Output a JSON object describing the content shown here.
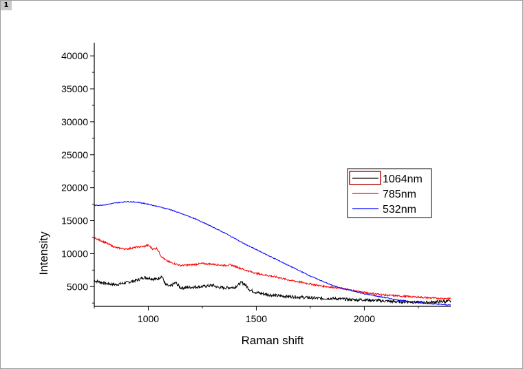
{
  "window": {
    "tab_label": "1"
  },
  "chart_data": {
    "type": "line",
    "xlabel": "Raman shift",
    "ylabel": "Intensity",
    "xlim": [
      750,
      2400
    ],
    "ylim": [
      2000,
      42000
    ],
    "xticks": [
      1000,
      1500,
      2000
    ],
    "yticks": [
      5000,
      10000,
      15000,
      20000,
      25000,
      30000,
      35000,
      40000
    ],
    "legend_position": "right-middle",
    "grid": false,
    "series": [
      {
        "name": "1064nm",
        "color": "#000000",
        "legend_box_color": "#b00000",
        "x": [
          750,
          800,
          850,
          900,
          950,
          980,
          1000,
          1020,
          1040,
          1062,
          1080,
          1100,
          1126,
          1150,
          1200,
          1250,
          1300,
          1320,
          1350,
          1400,
          1430,
          1445,
          1470,
          1500,
          1550,
          1600,
          1650,
          1700,
          1750,
          1800,
          1850,
          1900,
          1950,
          2000,
          2050,
          2100,
          2150,
          2200,
          2250,
          2300,
          2350,
          2400
        ],
        "y": [
          5900,
          5500,
          5300,
          5600,
          6000,
          6400,
          6300,
          6200,
          6100,
          6600,
          5300,
          5000,
          5600,
          4800,
          4900,
          5000,
          5200,
          4900,
          4800,
          4900,
          5600,
          5400,
          4500,
          4100,
          3800,
          3600,
          3500,
          3400,
          3300,
          3200,
          3200,
          3100,
          3000,
          3000,
          2900,
          2800,
          2700,
          2700,
          2600,
          2600,
          2700,
          2800
        ]
      },
      {
        "name": "785nm",
        "color": "#ff0000",
        "x": [
          750,
          800,
          850,
          900,
          950,
          980,
          1000,
          1020,
          1040,
          1060,
          1080,
          1100,
          1150,
          1200,
          1250,
          1300,
          1350,
          1380,
          1400,
          1450,
          1500,
          1550,
          1600,
          1650,
          1700,
          1750,
          1800,
          1850,
          1900,
          1950,
          2000,
          2050,
          2100,
          2150,
          2200,
          2250,
          2300,
          2350,
          2400
        ],
        "y": [
          12400,
          11700,
          10900,
          10700,
          11000,
          11100,
          11300,
          10700,
          10800,
          9600,
          9000,
          8700,
          8200,
          8300,
          8500,
          8400,
          8200,
          8300,
          8100,
          7500,
          7000,
          6700,
          6400,
          6000,
          5700,
          5400,
          5100,
          4900,
          4700,
          4400,
          4100,
          3900,
          3700,
          3600,
          3500,
          3400,
          3300,
          3200,
          3200
        ]
      },
      {
        "name": "532nm",
        "color": "#0000ff",
        "x": [
          750,
          800,
          850,
          900,
          950,
          1000,
          1050,
          1100,
          1150,
          1200,
          1250,
          1300,
          1350,
          1400,
          1450,
          1500,
          1550,
          1600,
          1650,
          1700,
          1750,
          1800,
          1850,
          1900,
          1950,
          2000,
          2050,
          2100,
          2150,
          2200,
          2250,
          2300,
          2350,
          2400
        ],
        "y": [
          17300,
          17400,
          17700,
          17900,
          17800,
          17500,
          17100,
          16700,
          16100,
          15500,
          14800,
          14000,
          13200,
          12300,
          11400,
          10600,
          9800,
          9000,
          8200,
          7400,
          6600,
          5900,
          5200,
          4700,
          4300,
          3900,
          3600,
          3300,
          3000,
          2800,
          2600,
          2400,
          2300,
          2200
        ]
      }
    ]
  }
}
